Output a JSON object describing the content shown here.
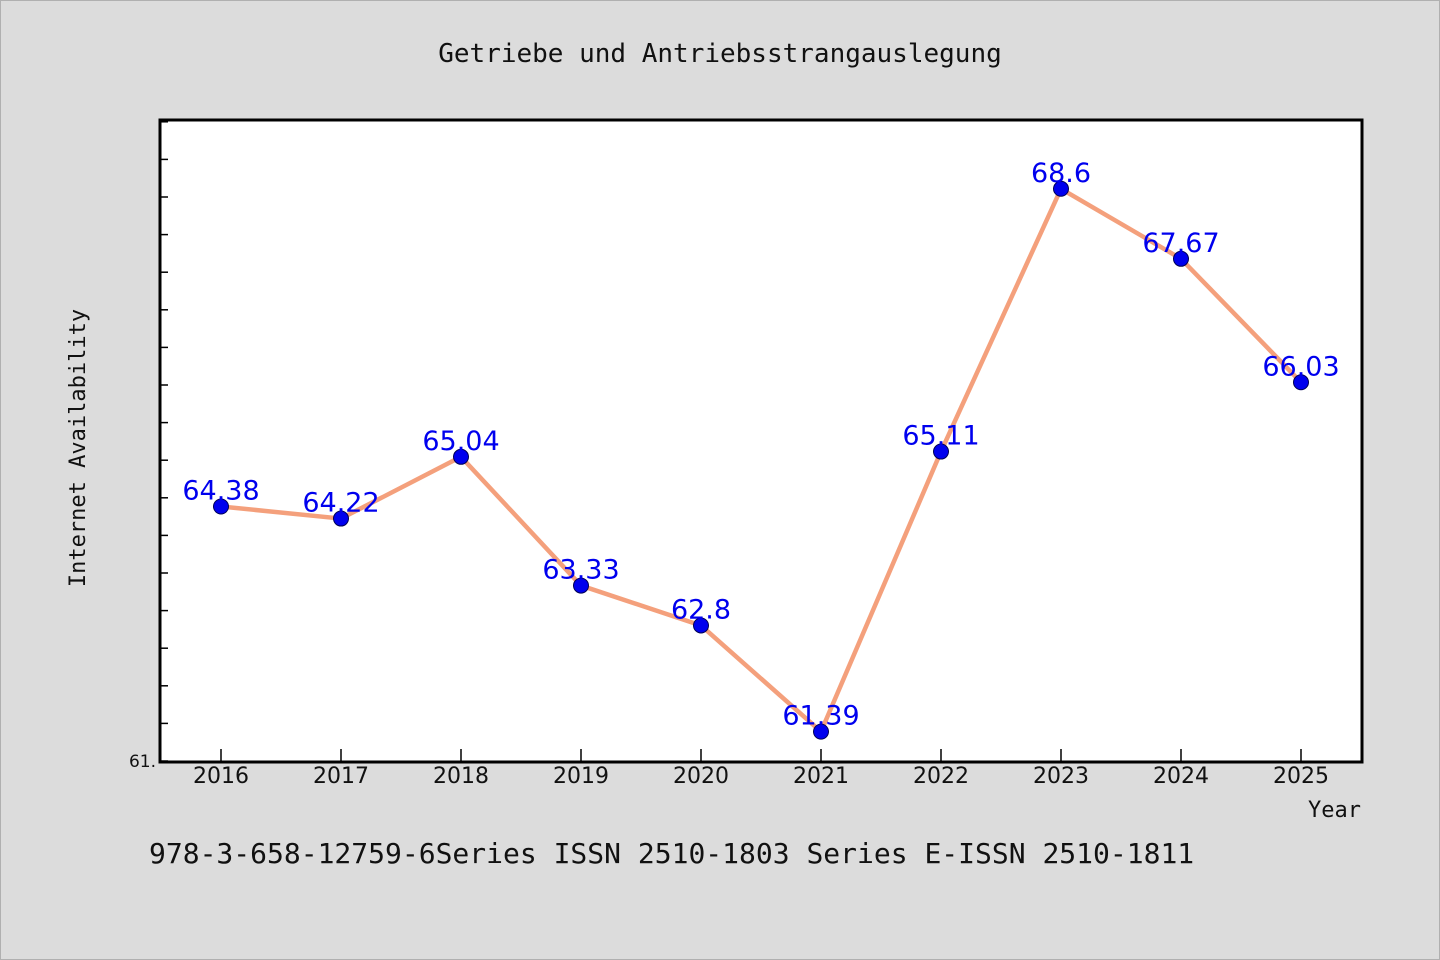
{
  "chart_data": {
    "type": "line",
    "title": "Getriebe und Antriebsstrangauslegung",
    "xlabel": "Year",
    "ylabel": "Internet Availability",
    "categories": [
      "2016",
      "2017",
      "2018",
      "2019",
      "2020",
      "2021",
      "2022",
      "2023",
      "2024",
      "2025"
    ],
    "series": [
      {
        "values": [
          64.38,
          64.22,
          65.04,
          63.33,
          62.8,
          61.39,
          65.11,
          68.6,
          67.67,
          66.03
        ]
      }
    ],
    "data_labels": [
      "64.38",
      "64.22",
      "65.04",
      "63.33",
      "62.8",
      "61.39",
      "65.11",
      "68.6",
      "67.67",
      "66.03"
    ],
    "ylim": [
      61.0,
      69.5
    ],
    "y_tick_label": "61.",
    "grid": false,
    "line_color": "#f4a07c",
    "marker_color": "#0000ee",
    "label_color": "#0000ee"
  },
  "footer": {
    "text": "978-3-658-12759-6Series ISSN 2510-1803 Series E-ISSN 2510-1811"
  }
}
